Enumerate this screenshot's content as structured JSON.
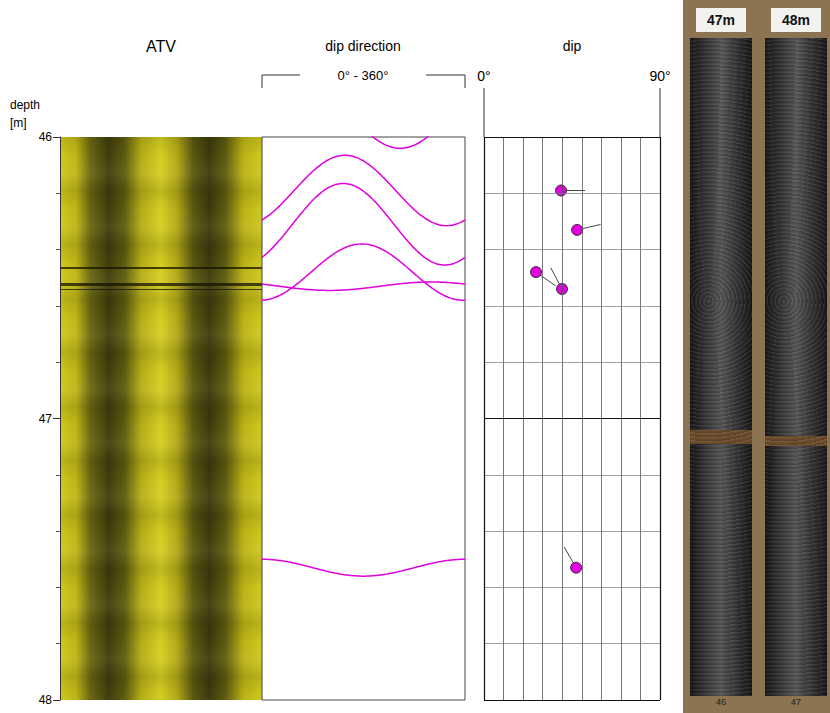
{
  "chart_data": {
    "type": "borehole_log",
    "y_title": "depth\n[m]",
    "ylim": [
      46,
      48
    ],
    "yticks": [
      46,
      47,
      48
    ],
    "yminor": [
      46.2,
      46.4,
      46.6,
      46.8,
      47.2,
      47.4,
      47.6,
      47.8
    ],
    "color": "#e000e0",
    "panels": {
      "atv": {
        "title": "ATV"
      },
      "dip_direction": {
        "title": "dip direction",
        "range_label": "0° - 360°",
        "xlim": [
          0,
          360
        ]
      },
      "dip": {
        "title": "dip",
        "xlim": [
          0,
          90
        ],
        "xticks": [
          {
            "value": 0,
            "label": "0°"
          },
          {
            "value": 90,
            "label": "90°"
          }
        ],
        "xgrid": [
          10,
          20,
          30,
          40,
          50,
          60,
          70,
          80
        ]
      },
      "core": {
        "box_labels": [
          "47m",
          "48m"
        ],
        "bottom_labels": [
          "46",
          "47"
        ]
      }
    },
    "sinusoids": [
      {
        "depth": 45.92,
        "amplitude": 0.12,
        "peak_azimuth": 65
      },
      {
        "depth": 46.19,
        "amplitude": 0.125,
        "peak_azimuth": 147
      },
      {
        "depth": 46.31,
        "amplitude": 0.145,
        "peak_azimuth": 144
      },
      {
        "depth": 46.48,
        "amplitude": 0.1,
        "peak_azimuth": 177
      },
      {
        "depth": 46.53,
        "amplitude": 0.015,
        "peak_azimuth": 300
      },
      {
        "depth": 47.53,
        "amplitude": 0.03,
        "peak_azimuth": 0
      }
    ],
    "tadpoles": [
      {
        "depth": 46.19,
        "dip": 39.4,
        "dip_direction": 90
      },
      {
        "depth": 46.33,
        "dip": 47.6,
        "dip_direction": 77
      },
      {
        "depth": 46.48,
        "dip": 26.6,
        "dip_direction": 125
      },
      {
        "depth": 46.54,
        "dip": 39.9,
        "dip_direction": 332
      },
      {
        "depth": 47.53,
        "dip": 47.1,
        "dip_direction": 330
      }
    ]
  }
}
